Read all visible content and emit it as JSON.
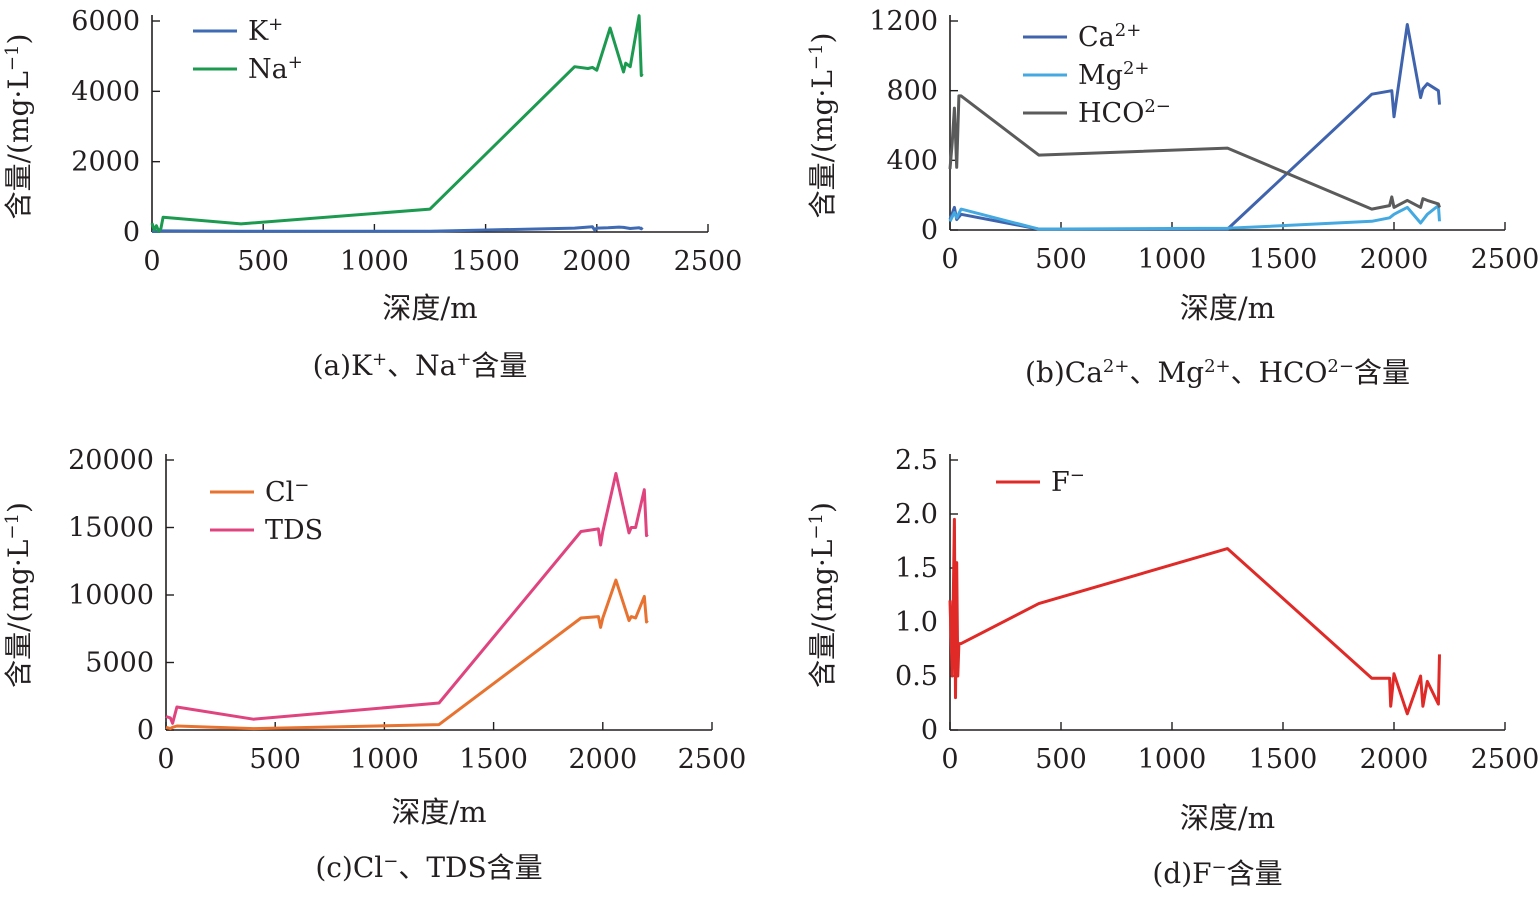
{
  "panels": [
    {
      "caption_html": "(a)K<tspan baseline-shift=\"super\" font-size=\"18\">+</tspan>、Na<tspan baseline-shift=\"super\" font-size=\"18\">+</tspan>含量",
      "caption_text": "(a)K+、Na+含量",
      "chart_data": {
        "type": "line",
        "xlabel": "深度/m",
        "ylabel": "含量/(mg·L⁻¹)",
        "xlim": [
          0,
          2500
        ],
        "ylim": [
          0,
          6000
        ],
        "xticks": [
          0,
          500,
          1000,
          1500,
          2000,
          2500
        ],
        "yticks": [
          0,
          2000,
          4000,
          6000
        ],
        "legend_position": "top-left",
        "series": [
          {
            "name": "K⁺",
            "name_html": "K<tspan baseline-shift=\"super\" font-size=\"18\">+</tspan>",
            "color": "#3e6bb4",
            "x": [
              0,
              20,
              30,
              50,
              400,
              1250,
              1900,
              1980,
              1990,
              2000,
              2050,
              2100,
              2120,
              2150,
              2190,
              2200,
              2205
            ],
            "y": [
              20,
              15,
              25,
              30,
              20,
              20,
              110,
              150,
              60,
              110,
              120,
              140,
              130,
              100,
              120,
              90,
              130
            ]
          },
          {
            "name": "Na⁺",
            "name_html": "Na<tspan baseline-shift=\"super\" font-size=\"18\">+</tspan>",
            "color": "#1c9a50",
            "x": [
              0,
              10,
              20,
              30,
              40,
              50,
              400,
              1250,
              1900,
              1960,
              1980,
              2000,
              2060,
              2120,
              2130,
              2150,
              2190,
              2200,
              2205
            ],
            "y": [
              250,
              50,
              180,
              20,
              100,
              420,
              230,
              650,
              4700,
              4650,
              4680,
              4600,
              5800,
              4550,
              4800,
              4700,
              6150,
              4450,
              4500
            ]
          }
        ]
      }
    },
    {
      "caption_html": "(b)Ca<tspan baseline-shift=\"super\" font-size=\"18\">2+</tspan>、Mg<tspan baseline-shift=\"super\" font-size=\"18\">2+</tspan>、HCO<tspan baseline-shift=\"super\" font-size=\"18\">2−</tspan>含量",
      "caption_text": "(b)Ca2+、Mg2+、HCO2-含量",
      "chart_data": {
        "type": "line",
        "xlabel": "深度/m",
        "ylabel": "含量/(mg·L⁻¹)",
        "xlim": [
          0,
          2500
        ],
        "ylim": [
          0,
          1200
        ],
        "xticks": [
          0,
          500,
          1000,
          1500,
          2000,
          2500
        ],
        "yticks": [
          0,
          400,
          800,
          1200
        ],
        "legend_position": "top-left",
        "series": [
          {
            "name": "Ca²⁺",
            "name_html": "Ca<tspan baseline-shift=\"super\" font-size=\"18\">2+</tspan>",
            "color": "#3f64ad",
            "x": [
              0,
              20,
              30,
              50,
              400,
              1250,
              1900,
              1990,
              2000,
              2060,
              2120,
              2130,
              2150,
              2200,
              2205
            ],
            "y": [
              60,
              130,
              60,
              90,
              5,
              5,
              780,
              800,
              650,
              1180,
              760,
              810,
              840,
              800,
              720
            ]
          },
          {
            "name": "Mg²⁺",
            "name_html": "Mg<tspan baseline-shift=\"super\" font-size=\"18\">2+</tspan>",
            "color": "#44a9e0",
            "x": [
              0,
              20,
              30,
              50,
              400,
              1250,
              1900,
              1980,
              2000,
              2060,
              2120,
              2150,
              2200,
              2205
            ],
            "y": [
              50,
              100,
              70,
              120,
              5,
              10,
              50,
              70,
              90,
              130,
              40,
              90,
              140,
              50
            ]
          },
          {
            "name": "HCO²⁻",
            "name_html": "HCO<tspan baseline-shift=\"super\" font-size=\"18\">2−</tspan>",
            "color": "#5b5b5b",
            "x": [
              0,
              10,
              20,
              30,
              40,
              50,
              400,
              1250,
              1900,
              1980,
              1990,
              2000,
              2060,
              2120,
              2130,
              2150,
              2200,
              2205
            ],
            "y": [
              350,
              500,
              700,
              360,
              770,
              770,
              430,
              470,
              120,
              140,
              190,
              130,
              170,
              130,
              180,
              170,
              150,
              130
            ]
          }
        ]
      }
    },
    {
      "caption_html": "(c)Cl<tspan baseline-shift=\"super\" font-size=\"18\">−</tspan>、TDS含量",
      "caption_text": "(c)Cl-、TDS含量",
      "chart_data": {
        "type": "line",
        "xlabel": "深度/m",
        "ylabel": "含量/(mg·L⁻¹)",
        "xlim": [
          0,
          2500
        ],
        "ylim": [
          0,
          20000
        ],
        "xticks": [
          0,
          500,
          1000,
          1500,
          2000,
          2500
        ],
        "yticks": [
          0,
          5000,
          10000,
          15000,
          20000
        ],
        "legend_position": "top-left",
        "series": [
          {
            "name": "Cl⁻",
            "name_html": "Cl<tspan baseline-shift=\"super\" font-size=\"18\">−</tspan>",
            "color": "#e8722f",
            "x": [
              0,
              20,
              30,
              50,
              400,
              1250,
              1900,
              1980,
              1990,
              2000,
              2060,
              2120,
              2130,
              2150,
              2190,
              2200,
              2205
            ],
            "y": [
              200,
              100,
              200,
              300,
              100,
              400,
              8300,
              8400,
              7600,
              8300,
              11100,
              8100,
              8400,
              8300,
              9900,
              8000,
              8100
            ]
          },
          {
            "name": "TDS",
            "name_html": "TDS",
            "color": "#e0447f",
            "x": [
              0,
              20,
              30,
              50,
              400,
              1250,
              1900,
              1980,
              1990,
              2000,
              2060,
              2120,
              2130,
              2150,
              2190,
              2200,
              2205
            ],
            "y": [
              1000,
              900,
              500,
              1700,
              800,
              2000,
              14700,
              14900,
              13700,
              14700,
              19000,
              14600,
              15000,
              15000,
              17800,
              14400,
              14500
            ]
          }
        ]
      }
    },
    {
      "caption_html": "(d)F<tspan baseline-shift=\"super\" font-size=\"18\">−</tspan>含量",
      "caption_text": "(d)F-含量",
      "chart_data": {
        "type": "line",
        "xlabel": "深度/m",
        "ylabel": "含量/(mg·L⁻¹)",
        "xlim": [
          0,
          2500
        ],
        "ylim": [
          0,
          2.5
        ],
        "xticks": [
          0,
          500,
          1000,
          1500,
          2000,
          2500
        ],
        "yticks": [
          0,
          0.5,
          1.0,
          1.5,
          2.0,
          2.5
        ],
        "ytick_labels": [
          "0",
          "0.5",
          "1.0",
          "1.5",
          "2.0",
          "2.5"
        ],
        "legend_position": "top-left",
        "series": [
          {
            "name": "F⁻",
            "name_html": "F<tspan baseline-shift=\"super\" font-size=\"18\">−</tspan>",
            "color": "#df2a27",
            "x": [
              0,
              10,
              20,
              25,
              30,
              35,
              40,
              50,
              400,
              1250,
              1900,
              1980,
              1985,
              2000,
              2060,
              2120,
              2130,
              2150,
              2200,
              2205
            ],
            "y": [
              1.2,
              0.5,
              1.95,
              0.3,
              1.55,
              0.5,
              0.8,
              0.8,
              1.17,
              1.68,
              0.48,
              0.48,
              0.22,
              0.52,
              0.15,
              0.5,
              0.22,
              0.45,
              0.24,
              0.7
            ]
          }
        ]
      }
    }
  ]
}
